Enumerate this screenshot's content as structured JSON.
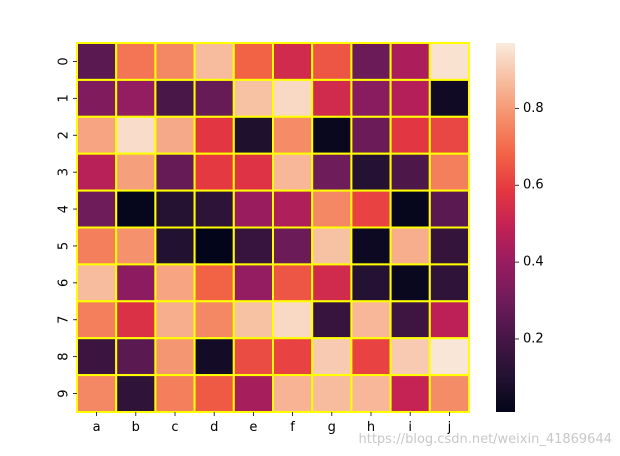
{
  "chart_data": {
    "type": "heatmap",
    "columns": [
      "a",
      "b",
      "c",
      "d",
      "e",
      "f",
      "g",
      "h",
      "i",
      "j"
    ],
    "rows": [
      "0",
      "1",
      "2",
      "3",
      "4",
      "5",
      "6",
      "7",
      "8",
      "9"
    ],
    "values": [
      [
        0.25,
        0.72,
        0.76,
        0.87,
        0.68,
        0.53,
        0.65,
        0.29,
        0.44,
        0.95
      ],
      [
        0.34,
        0.39,
        0.21,
        0.28,
        0.88,
        0.93,
        0.53,
        0.36,
        0.46,
        0.05
      ],
      [
        0.82,
        0.94,
        0.83,
        0.58,
        0.09,
        0.77,
        0.03,
        0.29,
        0.58,
        0.62
      ],
      [
        0.47,
        0.81,
        0.28,
        0.59,
        0.57,
        0.86,
        0.3,
        0.11,
        0.22,
        0.74
      ],
      [
        0.3,
        0.02,
        0.11,
        0.13,
        0.4,
        0.45,
        0.76,
        0.61,
        0.02,
        0.25
      ],
      [
        0.74,
        0.78,
        0.1,
        0.01,
        0.16,
        0.29,
        0.88,
        0.04,
        0.84,
        0.15
      ],
      [
        0.87,
        0.37,
        0.82,
        0.68,
        0.39,
        0.65,
        0.53,
        0.11,
        0.03,
        0.14
      ],
      [
        0.74,
        0.56,
        0.84,
        0.76,
        0.88,
        0.93,
        0.16,
        0.86,
        0.18,
        0.48
      ],
      [
        0.17,
        0.25,
        0.79,
        0.06,
        0.63,
        0.61,
        0.9,
        0.61,
        0.9,
        0.96
      ],
      [
        0.76,
        0.14,
        0.74,
        0.66,
        0.43,
        0.85,
        0.87,
        0.86,
        0.5,
        0.77
      ]
    ],
    "colormap": "rocket",
    "vmin": 0.01,
    "vmax": 0.97,
    "cell_border_color": "#ffff00",
    "colorbar_ticks": [
      0.2,
      0.4,
      0.6,
      0.8
    ],
    "colorbar_tick_labels": [
      "0.2",
      "0.4",
      "0.6",
      "0.8"
    ]
  },
  "watermark": "https://blog.csdn.net/weixin_41869644"
}
